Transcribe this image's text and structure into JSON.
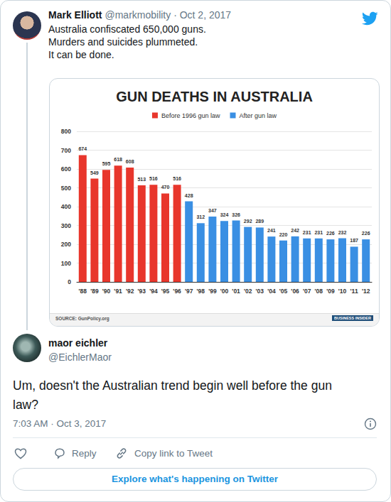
{
  "tweets": [
    {
      "name": "Mark Elliott",
      "meta": "@markmobility · Oct 2, 2017",
      "text": [
        "Australia confiscated 650,000 guns.",
        "Murders and suicides plummeted.",
        "It can be done."
      ]
    },
    {
      "name": "maor eichler",
      "handle": "@EichlerMaor",
      "text": [
        "Um, doesn't the Australian trend begin well before the gun",
        "law?"
      ],
      "timestamp": "7:03 AM · Oct 3, 2017"
    }
  ],
  "chart_data": {
    "type": "bar",
    "title": "GUN DEATHS IN AUSTRALIA",
    "categories": [
      "'88",
      "'89",
      "'90",
      "'91",
      "'92",
      "'93",
      "'94",
      "'95",
      "'96",
      "'97",
      "'98",
      "'99",
      "'00",
      "'01",
      "'02",
      "'03",
      "'04",
      "'05",
      "'06",
      "'07",
      "'08",
      "'09",
      "'10",
      "'11",
      "'12"
    ],
    "series": [
      {
        "name": "Before 1996 gun law",
        "color": "#e8362c",
        "values": [
          674,
          549,
          595,
          618,
          608,
          513,
          516,
          470,
          516,
          null,
          null,
          null,
          null,
          null,
          null,
          null,
          null,
          null,
          null,
          null,
          null,
          null,
          null,
          null,
          null
        ]
      },
      {
        "name": "After gun law",
        "color": "#3a8fe3",
        "values": [
          null,
          null,
          null,
          null,
          null,
          null,
          null,
          null,
          null,
          428,
          312,
          347,
          324,
          326,
          292,
          289,
          241,
          220,
          242,
          231,
          231,
          226,
          232,
          187,
          226
        ]
      }
    ],
    "ylim": [
      0,
      800
    ],
    "yticks": [
      0,
      100,
      200,
      300,
      400,
      500,
      600,
      700,
      800
    ],
    "grid": true,
    "legend": "top",
    "data_labels": true
  },
  "chart_footer": {
    "source": "SOURCE: GunPolicy.org",
    "credit": "BUSINESS INSIDER"
  },
  "actions": [
    "Reply",
    "Copy link to Tweet"
  ],
  "explore_button": "Explore what's happening on Twitter"
}
